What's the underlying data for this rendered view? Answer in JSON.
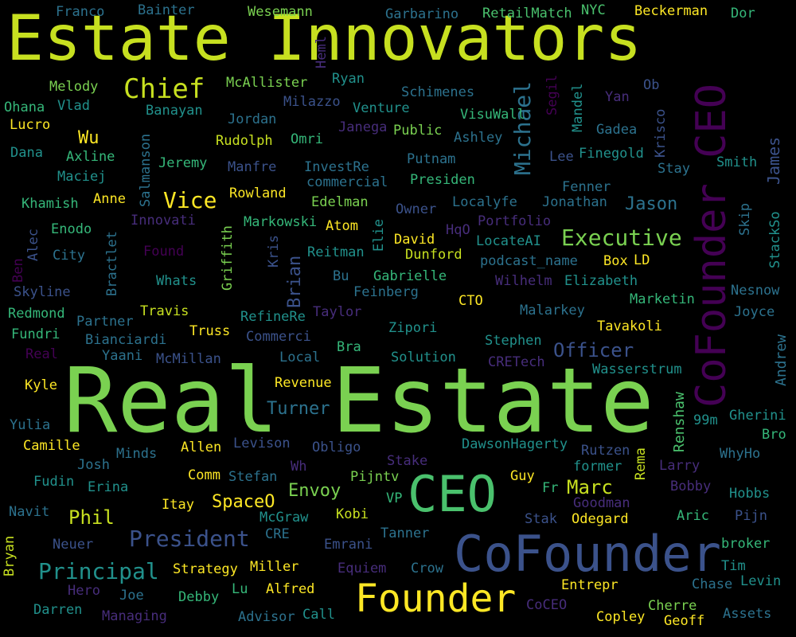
{
  "palette": {
    "background": "#000000",
    "yellow_green": "#c7e020",
    "light_green": "#7ad151",
    "yellow": "#fde725",
    "green": "#4ac16d",
    "teal_green": "#35b779",
    "teal": "#21918c",
    "cyan_teal": "#1fa187",
    "steel_blue": "#2c728e",
    "blue": "#3b528b",
    "indigo": "#472d7b",
    "purple": "#440154"
  },
  "words": [
    "Estate Innovators",
    "Real Estate",
    "CoFounder CEO",
    "CoFounder",
    "Founder",
    "CEO",
    "Chief",
    "Vice",
    "Executive",
    "Michael",
    "Officer",
    "President",
    "Principal",
    "Phil",
    "Marc",
    "SpaceO",
    "Envoy",
    "Turner",
    "Jason",
    "Wu",
    "Brian",
    "James",
    "Andrew",
    "Renshaw",
    "Franco",
    "Bainter",
    "Wesemann",
    "Garbarino",
    "RetailMatch",
    "NYC",
    "Beckerman",
    "Dor",
    "Melody",
    "McAllister",
    "Ryan",
    "Heml",
    "Ohana",
    "Vlad",
    "Banayan",
    "Milazzo",
    "Venture",
    "Schimenes",
    "Ob",
    "Yan",
    "Mandel",
    "Segil",
    "Lucro",
    "Jordan",
    "Janega",
    "Public",
    "VisuWall",
    "Gadea",
    "Krisco",
    "Dana",
    "Salmanson",
    "Rudolph",
    "Omri",
    "Ashley",
    "Lee",
    "Finegold",
    "Axline",
    "Putnam",
    "Stay",
    "Smith",
    "Maciej",
    "Jeremy",
    "Manfre",
    "InvestRe",
    "commercial",
    "Presiden",
    "Fenner",
    "Khamish",
    "Anne",
    "Rowland",
    "Edelman",
    "Owner",
    "Localyfe",
    "Jonathan",
    "Innovati",
    "Markowski",
    "Atom",
    "Portfolio",
    "Skip",
    "StackSo",
    "Enodo",
    "Bractlet",
    "Griffith",
    "Kris",
    "Elie",
    "HqO",
    "Alec",
    "City",
    "Found",
    "David",
    "LocateAI",
    "Dunford",
    "Reitman",
    "podcast_name",
    "Box",
    "LD",
    "Ben",
    "Whats",
    "Bu",
    "Gabrielle",
    "Elizabeth",
    "Wilhelm",
    "Skyline",
    "Feinberg",
    "Nesnow",
    "Redmond",
    "Travis",
    "Taylor",
    "CTO",
    "Marketin",
    "RefineRe",
    "Malarkey",
    "Joyce",
    "Partner",
    "Fundri",
    "Truss",
    "Tavakoli",
    "Zipori",
    "Bianciardi",
    "Commerci",
    "Stephen",
    "Real",
    "Yaani",
    "McMillan",
    "Local",
    "Bra",
    "Solution",
    "CRETech",
    "Wasserstrum",
    "Kyle",
    "Revenue",
    "Gherini",
    "Yulia",
    "99m",
    "Bro",
    "Camille",
    "Allen",
    "Levison",
    "Obligo",
    "DawsonHagerty",
    "Rutzen",
    "Minds",
    "Wh",
    "Larry",
    "Josh",
    "Stake",
    "former",
    "Rema",
    "WhyHo",
    "Fudin",
    "Comm",
    "Stefan",
    "Pijntv",
    "Guy",
    "Fr",
    "Bobby",
    "Erina",
    "Hobbs",
    "Itay",
    "VP",
    "Goodman",
    "Navit",
    "Kobi",
    "McGraw",
    "Stak",
    "Odegard",
    "Aric",
    "Pijn",
    "CRE",
    "Tanner",
    "Neuer",
    "Emrani",
    "broker",
    "Bryan",
    "Strategy",
    "Miller",
    "Equiem",
    "Crow",
    "Tim",
    "Hero",
    "Lu",
    "Alfred",
    "Entrepr",
    "Chase",
    "Levin",
    "Joe",
    "Debby",
    "Darren",
    "Managing",
    "Advisor",
    "Call",
    "CoCEO",
    "Copley",
    "Cherre",
    "Geoff",
    "Assets"
  ]
}
